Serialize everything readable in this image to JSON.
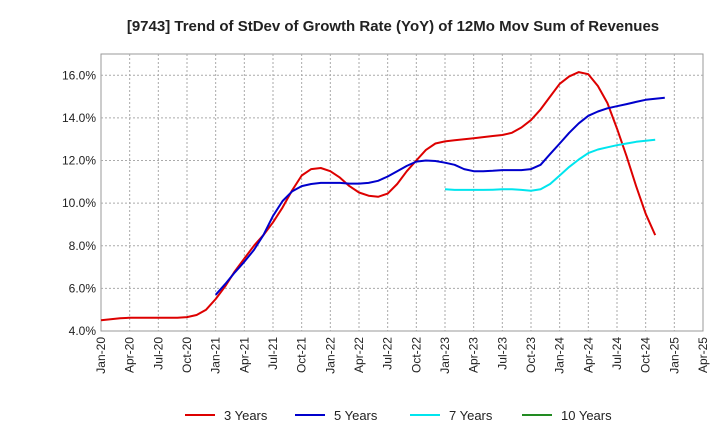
{
  "chart_data": {
    "type": "line",
    "title": "[9743]  Trend of StDev of Growth Rate (YoY) of 12Mo Mov Sum of Revenues",
    "xlabel": "",
    "ylabel": "",
    "ylim": [
      4.0,
      17.0
    ],
    "y_ticks": [
      4.0,
      6.0,
      8.0,
      10.0,
      12.0,
      14.0,
      16.0
    ],
    "y_tick_labels": [
      "4.0%",
      "6.0%",
      "8.0%",
      "10.0%",
      "12.0%",
      "14.0%",
      "16.0%"
    ],
    "x_ticks": [
      "Jan-20",
      "Apr-20",
      "Jul-20",
      "Oct-20",
      "Jan-21",
      "Apr-21",
      "Jul-21",
      "Oct-21",
      "Jan-22",
      "Apr-22",
      "Jul-22",
      "Oct-22",
      "Jan-23",
      "Apr-23",
      "Jul-23",
      "Oct-23",
      "Jan-24",
      "Apr-24",
      "Jul-24",
      "Oct-24",
      "Jan-25",
      "Apr-25"
    ],
    "grid": true,
    "legend_position": "bottom",
    "series": [
      {
        "name": "3 Years",
        "color": "#dd0000",
        "start_index": 0,
        "values": [
          4.5,
          4.55,
          4.6,
          4.62,
          4.62,
          4.62,
          4.62,
          4.62,
          4.62,
          4.65,
          4.75,
          5.0,
          5.5,
          6.1,
          6.8,
          7.4,
          8.0,
          8.5,
          9.1,
          9.8,
          10.6,
          11.3,
          11.6,
          11.65,
          11.5,
          11.2,
          10.8,
          10.5,
          10.35,
          10.3,
          10.45,
          10.9,
          11.5,
          12.0,
          12.5,
          12.8,
          12.9,
          12.95,
          13.0,
          13.05,
          13.1,
          13.15,
          13.2,
          13.3,
          13.55,
          13.9,
          14.4,
          15.0,
          15.6,
          15.95,
          16.15,
          16.05,
          15.5,
          14.7,
          13.5,
          12.2,
          10.8,
          9.5,
          8.5
        ]
      },
      {
        "name": "5 Years",
        "color": "#0000cc",
        "start_index": 12,
        "values": [
          5.7,
          6.2,
          6.75,
          7.25,
          7.8,
          8.5,
          9.4,
          10.1,
          10.55,
          10.8,
          10.9,
          10.95,
          10.95,
          10.95,
          10.92,
          10.92,
          10.95,
          11.05,
          11.25,
          11.5,
          11.75,
          11.95,
          12.0,
          11.98,
          11.9,
          11.8,
          11.6,
          11.5,
          11.5,
          11.52,
          11.55,
          11.55,
          11.55,
          11.6,
          11.8,
          12.3,
          12.8,
          13.3,
          13.75,
          14.1,
          14.3,
          14.45,
          14.55,
          14.65,
          14.75,
          14.85,
          14.9,
          14.95
        ]
      },
      {
        "name": "7 Years",
        "color": "#00e5ee",
        "start_index": 36,
        "values": [
          10.65,
          10.62,
          10.62,
          10.62,
          10.62,
          10.63,
          10.65,
          10.65,
          10.62,
          10.58,
          10.65,
          10.9,
          11.3,
          11.7,
          12.05,
          12.35,
          12.52,
          12.62,
          12.72,
          12.8,
          12.88,
          12.93,
          12.98
        ]
      },
      {
        "name": "10 Years",
        "color": "#228b22",
        "start_index": 0,
        "values": []
      }
    ]
  }
}
